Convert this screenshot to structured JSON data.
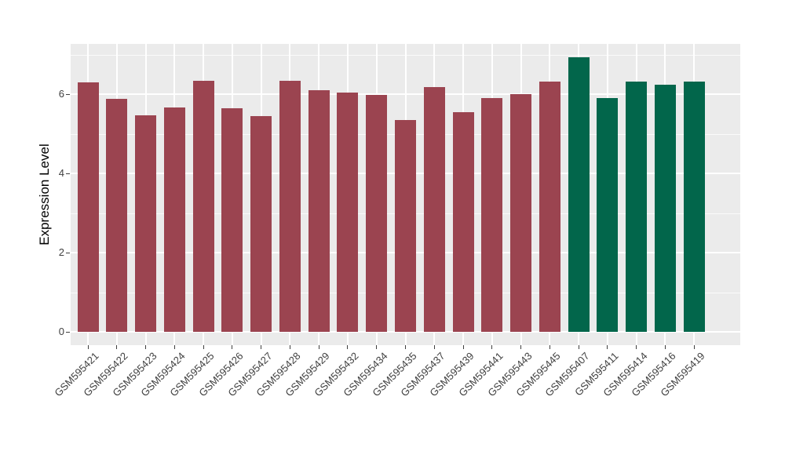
{
  "figure": {
    "background": "#ffffff"
  },
  "chart_data": {
    "type": "bar",
    "title": "",
    "xlabel": "",
    "ylabel": "Expression Level",
    "ylim": [
      0,
      7.3
    ],
    "yticks": [
      0,
      2,
      4,
      6
    ],
    "yminor": [
      1,
      3,
      5,
      7
    ],
    "grid": "white major/minor horizontal gridlines and vertical major gridlines on gray panel",
    "legend_position": "none",
    "panel_background": "#ebebeb",
    "grid_color": "#ffffff",
    "axis_text_color": "#404040",
    "group_colors": {
      "group_1": "#9b4450",
      "group_2": "#02664b"
    },
    "categories": [
      "GSM595421",
      "GSM595422",
      "GSM595423",
      "GSM595424",
      "GSM595425",
      "GSM595426",
      "GSM595427",
      "GSM595428",
      "GSM595429",
      "GSM595432",
      "GSM595434",
      "GSM595435",
      "GSM595437",
      "GSM595439",
      "GSM595441",
      "GSM595443",
      "GSM595445",
      "GSM595407",
      "GSM595411",
      "GSM595414",
      "GSM595416",
      "GSM595419"
    ],
    "values": [
      6.3,
      5.88,
      5.46,
      5.67,
      6.34,
      5.65,
      5.44,
      6.33,
      6.1,
      6.03,
      5.98,
      5.35,
      6.18,
      5.54,
      5.91,
      6.0,
      6.32,
      6.93,
      5.91,
      6.32,
      6.24,
      6.31
    ],
    "bar_colors": [
      "#9b4450",
      "#9b4450",
      "#9b4450",
      "#9b4450",
      "#9b4450",
      "#9b4450",
      "#9b4450",
      "#9b4450",
      "#9b4450",
      "#9b4450",
      "#9b4450",
      "#9b4450",
      "#9b4450",
      "#9b4450",
      "#9b4450",
      "#9b4450",
      "#9b4450",
      "#02664b",
      "#02664b",
      "#02664b",
      "#02664b",
      "#02664b"
    ]
  }
}
